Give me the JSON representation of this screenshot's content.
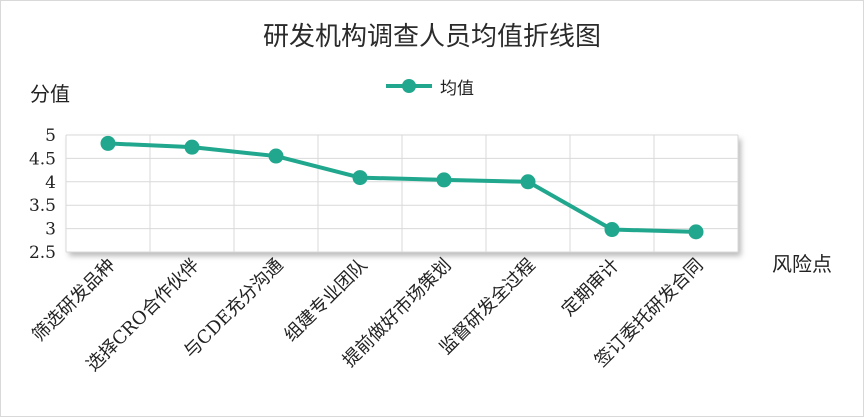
{
  "chart_data": {
    "type": "line",
    "title": "研发机构调查人员均值折线图",
    "ylabel": "分值",
    "xlabel": "风险点",
    "categories": [
      "筛选研发品种",
      "选择CRO合作伙伴",
      "与CDE充分沟通",
      "组建专业团队",
      "提前做好市场策划",
      "监督研发全过程",
      "定期审计",
      "签订委托研发合同"
    ],
    "series": [
      {
        "name": "均值",
        "color": "#20a78d",
        "values": [
          4.82,
          4.74,
          4.55,
          4.09,
          4.04,
          4.0,
          2.98,
          2.93
        ]
      }
    ],
    "ylim": [
      2.5,
      5
    ],
    "yticks": [
      "2.5",
      "3",
      "3.5",
      "4",
      "4.5",
      "5"
    ],
    "grid": true,
    "legend": "top-center"
  }
}
